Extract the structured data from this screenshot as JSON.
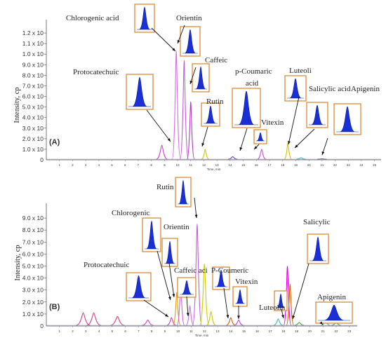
{
  "chart_data": [
    {
      "type": "line",
      "panel_label": "(A)",
      "ylabel": "Intensity, cp",
      "xlabel": "Time, min",
      "xlim": [
        0,
        25.5
      ],
      "ylim": [
        0,
        1.3
      ],
      "x_ticks": [
        "1",
        "2",
        "3",
        "4",
        "5",
        "6",
        "7",
        "8",
        "9",
        "10",
        "11",
        "12",
        "13",
        "14",
        "15",
        "16",
        "17",
        "18",
        "19",
        "20",
        "21",
        "22",
        "23",
        "24",
        "25"
      ],
      "y_ticks": [
        "1.0 x 10",
        "2.0 x 10",
        "3.0 x 10",
        "4.0 x 10",
        "5.0 x 10",
        "6.0 x 10",
        "7.0 x 10",
        "8.0 x 10",
        "9.0 x 10",
        "1.0 x 10",
        "1.1 x 10",
        "1.2 x 10"
      ],
      "y_tick_values": [
        0.1,
        0.2,
        0.3,
        0.4,
        0.5,
        0.6,
        0.7,
        0.8,
        0.9,
        1.0,
        1.1,
        1.2
      ],
      "zero_label": "0",
      "peaks": [
        {
          "name": "Protocatechuic",
          "x": 8.8,
          "y": 0.14,
          "color": "#cc44cc",
          "width": 0.12
        },
        {
          "name": "Chlorogenic acid",
          "x": 9.9,
          "y": 1.03,
          "color": "#d070e0",
          "width": 0.09
        },
        {
          "name": "Orientin",
          "x": 10.5,
          "y": 0.94,
          "color": "#c060d8",
          "width": 0.09
        },
        {
          "name": "Caffeic",
          "x": 11.0,
          "y": 0.55,
          "color": "#b040c0",
          "width": 0.08
        },
        {
          "name": "Rutin",
          "x": 12.1,
          "y": 0.1,
          "color": "#cccc00",
          "width": 0.08
        },
        {
          "name": "p-Coumaric acid",
          "x": 14.2,
          "y": 0.03,
          "color": "#6644aa",
          "width": 0.1
        },
        {
          "name": "Vitexin",
          "x": 16.4,
          "y": 0.1,
          "color": "#d050d0",
          "width": 0.09
        },
        {
          "name": "Luteoli",
          "x": 18.4,
          "y": 0.16,
          "color": "#e0c000",
          "width": 0.08
        },
        {
          "name": "Salicylic acid",
          "x": 19.4,
          "y": 0.02,
          "color": "#44bbbb",
          "width": 0.1
        },
        {
          "name": "Apigenin",
          "x": 21.0,
          "y": 0.01,
          "color": "#555555",
          "width": 0.1
        }
      ],
      "annotations": [
        {
          "text": "Chlorogenic  acid"
        },
        {
          "text": "Orientin"
        },
        {
          "text": "Caffeic"
        },
        {
          "text": "Protocatechuic"
        },
        {
          "text": "Rutin"
        },
        {
          "text": "p-Coumaric"
        },
        {
          "text": "acid"
        },
        {
          "text": "Luteoli"
        },
        {
          "text": "Salicylic  acid"
        },
        {
          "text": "Apigenin"
        },
        {
          "text": "Vitexin"
        }
      ]
    },
    {
      "type": "line",
      "panel_label": "(B)",
      "ylabel": "Intensity, cp",
      "xlabel": "Time, min",
      "xlim": [
        0,
        23.6
      ],
      "ylim": [
        0,
        1.0
      ],
      "x_ticks": [
        "1",
        "2",
        "3",
        "4",
        "5",
        "6",
        "7",
        "8",
        "9",
        "10",
        "11",
        "12",
        "13",
        "14",
        "15",
        "16",
        "17",
        "18",
        "19",
        "20",
        "21",
        "22",
        "23"
      ],
      "y_ticks": [
        "1.0 x 10",
        "2.0 x 10",
        "3.0 x 10",
        "4.0 x 10",
        "5.0 x 10",
        "6.0 x 10",
        "7.0 x 10",
        "8.0 x 10",
        "9.0 x 10"
      ],
      "y_tick_values": [
        0.1,
        0.2,
        0.3,
        0.4,
        0.5,
        0.6,
        0.7,
        0.8,
        0.9
      ],
      "zero_label": "0",
      "peaks": [
        {
          "name": "",
          "x": 2.8,
          "y": 0.11,
          "color": "#cc4488",
          "width": 0.15
        },
        {
          "name": "",
          "x": 3.6,
          "y": 0.11,
          "color": "#cc4488",
          "width": 0.15
        },
        {
          "name": "",
          "x": 5.4,
          "y": 0.08,
          "color": "#cc4488",
          "width": 0.15
        },
        {
          "name": "",
          "x": 7.7,
          "y": 0.05,
          "color": "#cc44cc",
          "width": 0.12
        },
        {
          "name": "Protocatechuic",
          "x": 9.5,
          "y": 0.07,
          "color": "#cc44cc",
          "width": 0.1
        },
        {
          "name": "Chlorogenic",
          "x": 9.9,
          "y": 0.28,
          "color": "#e0a000",
          "width": 0.08
        },
        {
          "name": "Orientin",
          "x": 10.2,
          "y": 0.34,
          "color": "#cc66dd",
          "width": 0.08
        },
        {
          "name": "Caffeic  aci",
          "x": 10.9,
          "y": 0.17,
          "color": "#d070e0",
          "width": 0.08
        },
        {
          "name": "Rutin",
          "x": 11.45,
          "y": 0.85,
          "color": "#c060d8",
          "width": 0.1
        },
        {
          "name": "",
          "x": 12.0,
          "y": 0.52,
          "color": "#cccc00",
          "width": 0.1
        },
        {
          "name": "",
          "x": 12.5,
          "y": 0.12,
          "color": "#cccc00",
          "width": 0.1
        },
        {
          "name": "P-Coumeric",
          "x": 14.0,
          "y": 0.07,
          "color": "#cc6600",
          "width": 0.1
        },
        {
          "name": "Vitexin",
          "x": 14.6,
          "y": 0.05,
          "color": "#cc44cc",
          "width": 0.1
        },
        {
          "name": "Luteolin",
          "x": 17.6,
          "y": 0.06,
          "color": "#44bbbb",
          "width": 0.1
        },
        {
          "name": "",
          "x": 18.3,
          "y": 0.5,
          "color": "#e000e0",
          "width": 0.08
        },
        {
          "name": "",
          "x": 18.5,
          "y": 0.35,
          "color": "#cc6600",
          "width": 0.08
        },
        {
          "name": "Salicylic",
          "x": 19.2,
          "y": 0.03,
          "color": "#44aa44",
          "width": 0.1
        },
        {
          "name": "Apigenin",
          "x": 21.2,
          "y": 0.04,
          "color": "#44aaaa",
          "width": 0.1
        },
        {
          "name": "",
          "x": 22.0,
          "y": 0.03,
          "color": "#44aa44",
          "width": 0.1
        }
      ],
      "annotations": [
        {
          "text": "Rutin"
        },
        {
          "text": "Chlorogenic"
        },
        {
          "text": "Orientin"
        },
        {
          "text": "Protocatechuic"
        },
        {
          "text": "Caffeic   aci"
        },
        {
          "text": "P-Coumeric"
        },
        {
          "text": "Vitexin"
        },
        {
          "text": "Luteolin"
        },
        {
          "text": "Salicylic"
        },
        {
          "text": "Apigenin"
        }
      ]
    }
  ]
}
